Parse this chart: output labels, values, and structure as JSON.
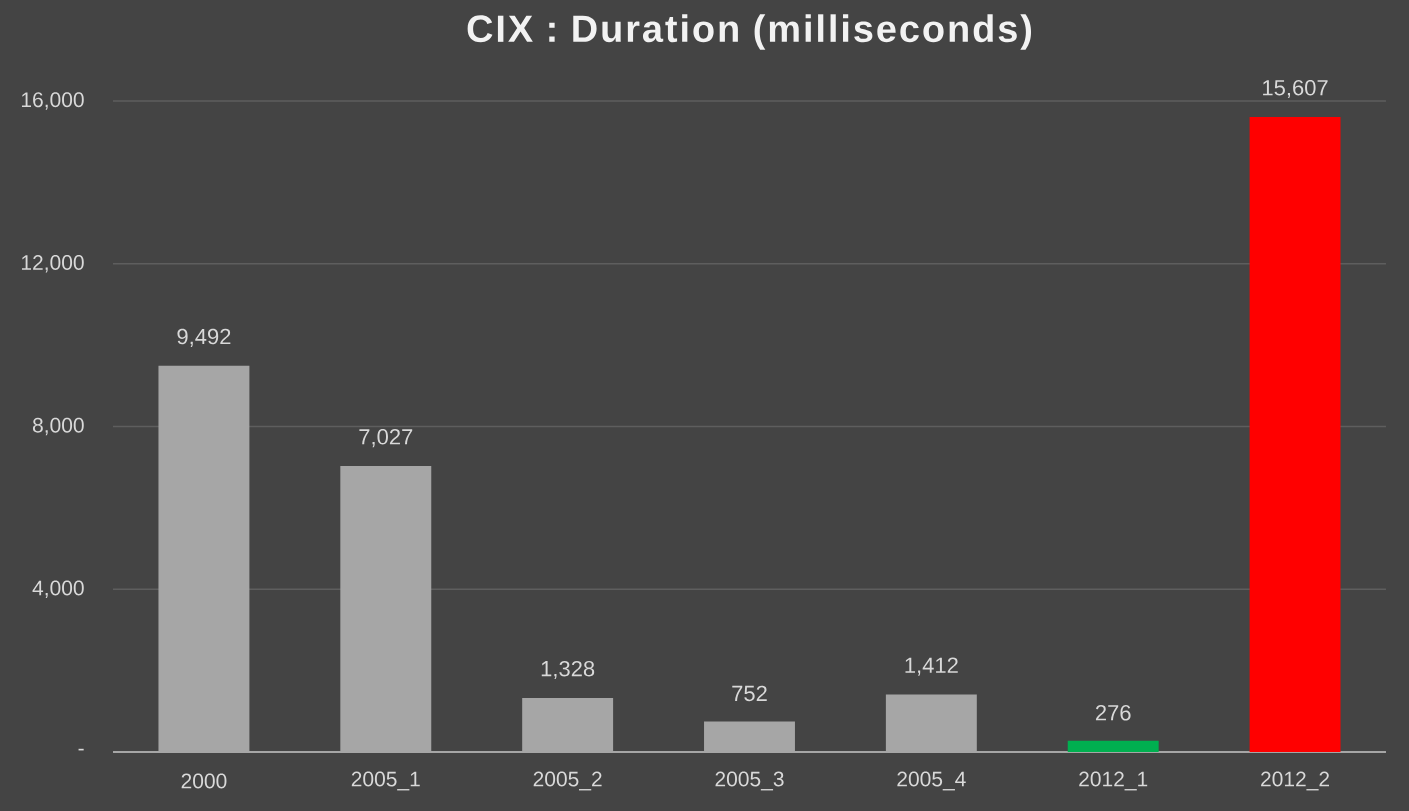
{
  "chart_data": {
    "type": "bar",
    "title": "CIX : Duration (milliseconds)",
    "categories": [
      "2000",
      "2005_1",
      "2005_2",
      "2005_3",
      "2005_4",
      "2012_1",
      "2012_2"
    ],
    "values": [
      9492,
      7027,
      1328,
      752,
      1412,
      276,
      15607
    ],
    "colors": [
      "#a6a6a6",
      "#a6a6a6",
      "#a6a6a6",
      "#a6a6a6",
      "#a6a6a6",
      "#00b050",
      "#ff0000"
    ],
    "value_labels": [
      "9,492",
      "7,027",
      "1,328",
      "752",
      "1,412",
      "276",
      "15,607"
    ],
    "ylim": [
      0,
      16000
    ],
    "yticks": [
      {
        "value": 0,
        "label": "-"
      },
      {
        "value": 4000,
        "label": "4,000"
      },
      {
        "value": 8000,
        "label": "8,000"
      },
      {
        "value": 12000,
        "label": "12,000"
      },
      {
        "value": 16000,
        "label": "16,000"
      }
    ],
    "grid": "y"
  }
}
